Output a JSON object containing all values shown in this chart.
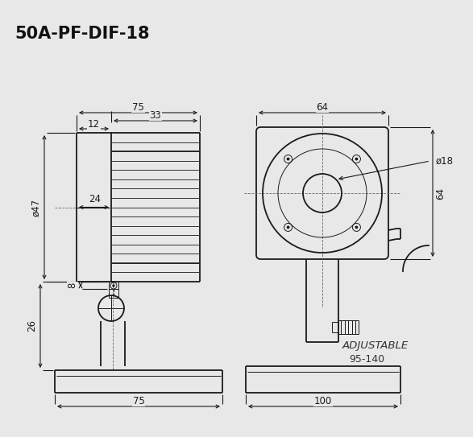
{
  "title": "50A-PF-DIF-18",
  "line_color": "#1a1a1a",
  "bg_color": "#e8e8e8",
  "dims": {
    "d75_top": "75",
    "d33": "33",
    "d12": "12",
    "d24": "24",
    "d47": "ø47",
    "d8": "8",
    "d26": "26",
    "d75_base": "75",
    "d64_w": "64",
    "d64_h": "64",
    "d18": "ø18",
    "d100": "100",
    "adjustable": "ADJUSTABLE",
    "range": "95-140"
  }
}
